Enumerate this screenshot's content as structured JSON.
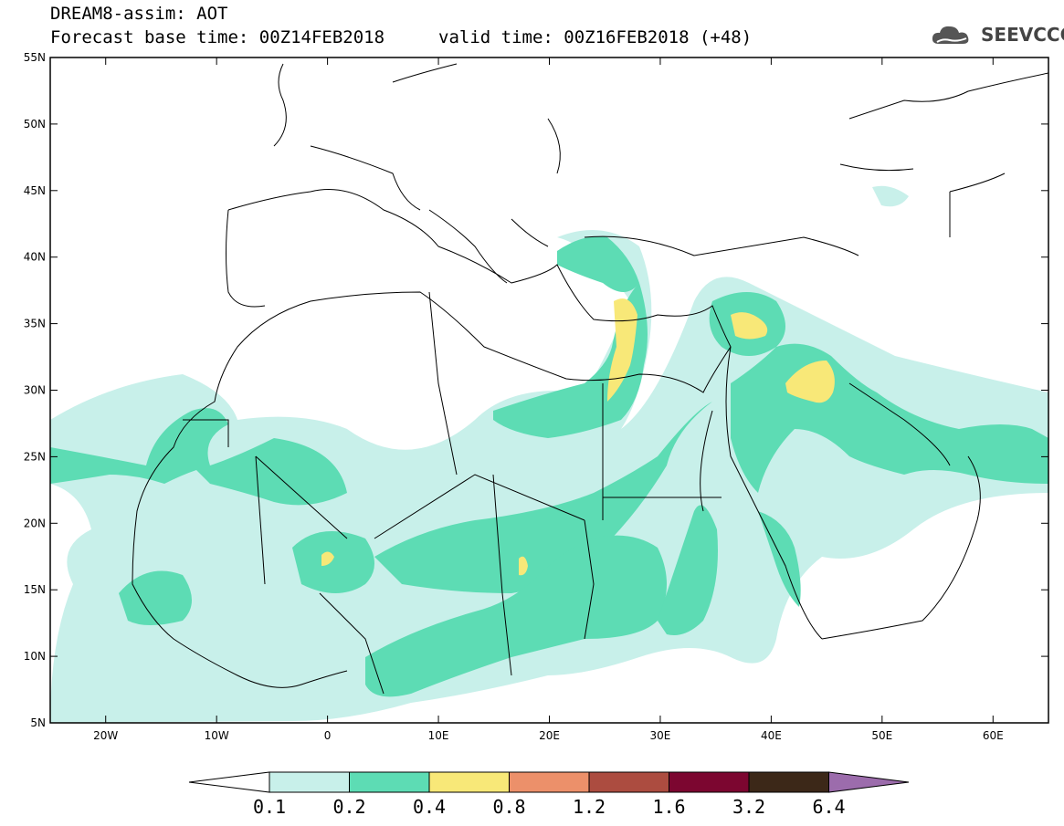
{
  "header": {
    "line1": "DREAM8-assim: AOT",
    "line2": "Forecast base time: 00Z14FEB2018",
    "valid": "valid time: 00Z16FEB2018 (+48)"
  },
  "logo": {
    "text": "SEEVCCC",
    "icon": "cloud-icon"
  },
  "map": {
    "lat_labels": [
      "55N",
      "50N",
      "45N",
      "40N",
      "35N",
      "30N",
      "25N",
      "20N",
      "15N",
      "10N",
      "5N"
    ],
    "lon_labels": [
      "20W",
      "10W",
      "0",
      "10E",
      "20E",
      "30E",
      "40E",
      "50E",
      "60E"
    ],
    "lat_range": [
      5,
      55
    ],
    "lon_range": [
      -25,
      65
    ]
  },
  "colorbar": {
    "levels": [
      "0.1",
      "0.2",
      "0.4",
      "0.8",
      "1.2",
      "1.6",
      "3.2",
      "6.4"
    ],
    "colors": [
      "#ffffff",
      "#c8f0ea",
      "#5ddcb4",
      "#f8e878",
      "#ec906a",
      "#ac4c40",
      "#7c0630",
      "#3c2818",
      "#9c6cac"
    ]
  }
}
